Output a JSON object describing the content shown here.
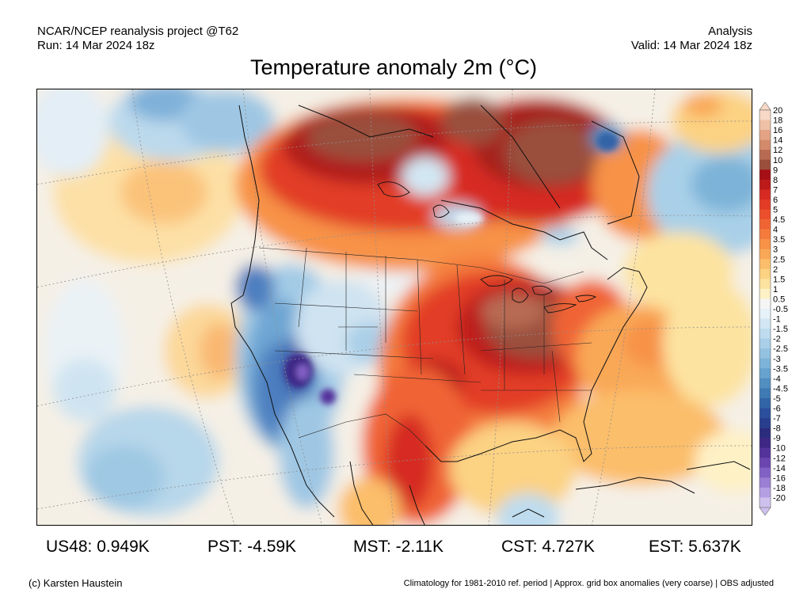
{
  "header": {
    "left_line1": "NCAR/NCEP reanalysis project @T62",
    "left_line2": "Run: 14 Mar 2024 18z",
    "right_line1": "Analysis",
    "right_line2": "Valid: 14 Mar 2024 18z"
  },
  "title": "Temperature anomaly 2m (°C)",
  "colorbar": {
    "labels": [
      "20",
      "18",
      "16",
      "14",
      "12",
      "10",
      "9",
      "8",
      "7",
      "6",
      "5",
      "4.5",
      "4",
      "3.5",
      "3",
      "2.5",
      "2",
      "1.5",
      "1",
      "0.5",
      "-0.5",
      "-1",
      "-1.5",
      "-2",
      "-2.5",
      "-3",
      "-3.5",
      "-4",
      "-4.5",
      "-5",
      "-6",
      "-7",
      "-8",
      "-9",
      "-10",
      "-12",
      "-14",
      "-16",
      "-18",
      "-20"
    ],
    "colors": [
      "#f7d8c6",
      "#efc1a6",
      "#e3a384",
      "#d38b6c",
      "#b86b52",
      "#9a4f3d",
      "#a50f15",
      "#bd1a1a",
      "#d62a22",
      "#e23c26",
      "#ec4f2c",
      "#f06434",
      "#f47b3c",
      "#f79246",
      "#f9a856",
      "#fbbe6b",
      "#fcd283",
      "#fde3a0",
      "#fef1c6",
      "#f5f5f5",
      "#e6f1f8",
      "#d2e7f3",
      "#bedcee",
      "#a9d0e8",
      "#93c2e1",
      "#7db3d8",
      "#66a2cd",
      "#518fc1",
      "#3f7ab4",
      "#3264a8",
      "#2b4f9c",
      "#283e8e",
      "#2b2c7e",
      "#3d2886",
      "#54339b",
      "#6b46b0",
      "#8261c4",
      "#9b7fd4",
      "#b59fe2",
      "#cfc1ee"
    ]
  },
  "stats": [
    {
      "label": "US48: 0.949K"
    },
    {
      "label": "PST: -4.59K"
    },
    {
      "label": "MST: -2.11K"
    },
    {
      "label": "CST: 4.727K"
    },
    {
      "label": "EST: 5.637K"
    }
  ],
  "footer": {
    "left": "(c) Karsten Haustein",
    "right": "Climatology for 1981-2010 ref. period | Approx. grid box anomalies (very coarse) | OBS adjusted"
  }
}
